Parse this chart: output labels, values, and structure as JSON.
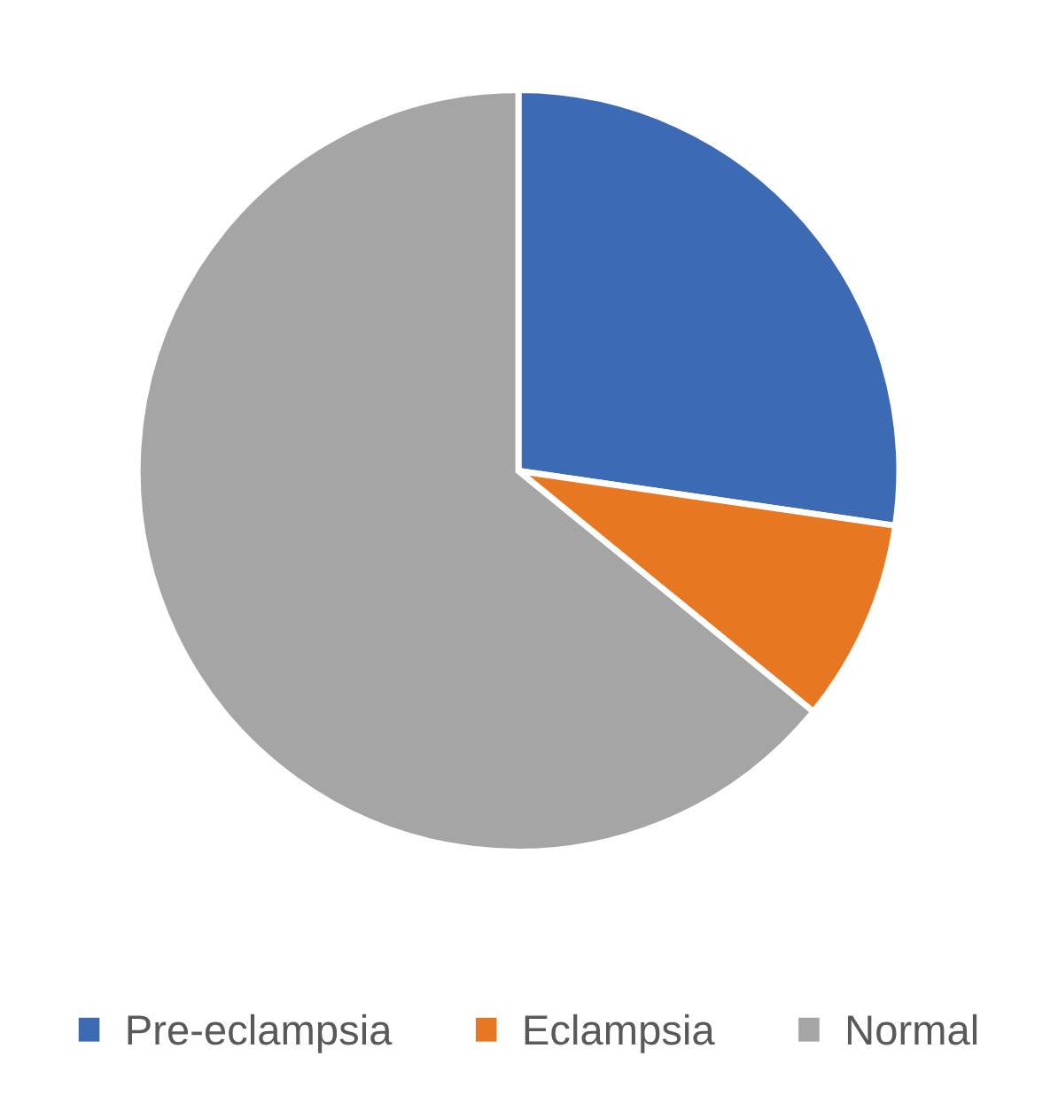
{
  "chart_data": {
    "type": "pie",
    "categories": [
      "Pre-eclampsia",
      "Eclampsia",
      "Normal"
    ],
    "values": [
      27.3,
      8.6,
      64.1
    ],
    "colors": [
      "#3c6ab4",
      "#e87722",
      "#a5a5a5"
    ],
    "legend": "bottom"
  }
}
